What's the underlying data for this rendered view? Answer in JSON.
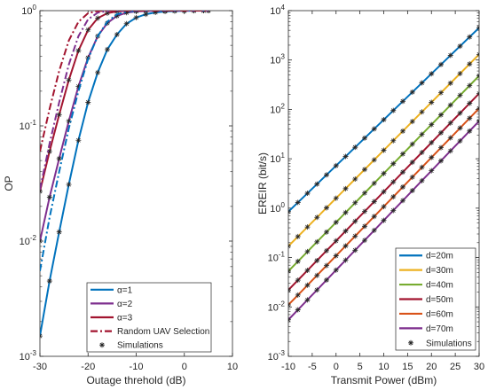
{
  "chart_data": [
    {
      "type": "line",
      "xlabel": "Outage threhold (dB)",
      "ylabel": "OP",
      "xscale": "linear",
      "yscale": "log",
      "xlim": [
        -30,
        10
      ],
      "ylim": [
        0.001,
        1
      ],
      "xticks": [
        -30,
        -20,
        -10,
        0,
        10
      ],
      "xtick_labels": [
        "-30",
        "-20",
        "-10",
        "0",
        "10"
      ],
      "yticks": [
        0.001,
        0.01,
        0.1,
        1
      ],
      "ytick_labels": [
        "10^-3",
        "10^-2",
        "10^-1",
        "10^0"
      ],
      "legend": "bottom-right",
      "series": [
        {
          "name": "α=1",
          "color": "#0072BD",
          "dash": "solid",
          "marker": "*",
          "x": [
            -30,
            -28,
            -26,
            -24,
            -22,
            -20,
            -18,
            -16,
            -14,
            -12,
            -10,
            -8,
            -6,
            -4,
            -2,
            0,
            2,
            4,
            5
          ],
          "y": [
            0.0015,
            0.0045,
            0.012,
            0.031,
            0.075,
            0.16,
            0.29,
            0.46,
            0.62,
            0.77,
            0.87,
            0.93,
            0.965,
            0.983,
            0.992,
            0.996,
            0.998,
            0.999,
            1.0
          ]
        },
        {
          "name": "α=2",
          "color": "#7E2F8E",
          "dash": "solid",
          "marker": "*",
          "x": [
            -30,
            -28,
            -26,
            -24,
            -22,
            -20,
            -18,
            -16,
            -14,
            -12,
            -10,
            -8,
            -6,
            -4,
            -2,
            0,
            2,
            4,
            5
          ],
          "y": [
            0.01,
            0.024,
            0.052,
            0.11,
            0.22,
            0.39,
            0.6,
            0.78,
            0.9,
            0.96,
            0.985,
            0.994,
            0.998,
            0.999,
            1.0,
            1.0,
            1.0,
            1.0,
            1.0
          ]
        },
        {
          "name": "α=3",
          "color": "#A2142F",
          "dash": "solid",
          "marker": "*",
          "x": [
            -30,
            -28,
            -26,
            -24,
            -22,
            -20,
            -18,
            -16,
            -14,
            -12,
            -10,
            -8,
            -6,
            -4,
            -2,
            0,
            2,
            4,
            5
          ],
          "y": [
            0.027,
            0.06,
            0.125,
            0.25,
            0.45,
            0.68,
            0.86,
            0.95,
            0.985,
            0.996,
            0.999,
            1.0,
            1.0,
            1.0,
            1.0,
            1.0,
            1.0,
            1.0,
            1.0
          ]
        },
        {
          "name": "",
          "color": "#0072BD",
          "dash": "dashdot",
          "marker": "",
          "x": [
            -30,
            -28,
            -26,
            -24,
            -22,
            -20,
            -18,
            -16,
            -14,
            -12,
            -10,
            -8,
            -6,
            -4,
            -2,
            0,
            2,
            4,
            5
          ],
          "y": [
            0.0055,
            0.016,
            0.04,
            0.095,
            0.2,
            0.38,
            0.6,
            0.8,
            0.93,
            0.98,
            0.995,
            0.999,
            1.0,
            1.0,
            1.0,
            1.0,
            1.0,
            1.0,
            1.0
          ]
        },
        {
          "name": "",
          "color": "#7E2F8E",
          "dash": "dashdot",
          "marker": "",
          "x": [
            -30,
            -28,
            -26,
            -24,
            -22,
            -20,
            -18,
            -16,
            -14,
            -12,
            -10,
            -8,
            -6,
            -4,
            -2,
            0,
            2,
            4,
            5
          ],
          "y": [
            0.028,
            0.07,
            0.16,
            0.34,
            0.6,
            0.84,
            0.96,
            0.993,
            0.999,
            1.0,
            1.0,
            1.0,
            1.0,
            1.0,
            1.0,
            1.0,
            1.0,
            1.0,
            1.0
          ]
        },
        {
          "name": "Random UAV Selection",
          "color": "#A2142F",
          "dash": "dashdot",
          "marker": "",
          "x": [
            -30,
            -28,
            -26,
            -24,
            -22,
            -20,
            -18,
            -16,
            -14,
            -12,
            -10,
            -8,
            -6,
            -4,
            -2,
            0,
            2,
            4,
            5
          ],
          "y": [
            0.06,
            0.14,
            0.3,
            0.55,
            0.8,
            0.95,
            0.993,
            0.999,
            1.0,
            1.0,
            1.0,
            1.0,
            1.0,
            1.0,
            1.0,
            1.0,
            1.0,
            1.0,
            1.0
          ]
        },
        {
          "name": "Simulations",
          "color": "#262626",
          "dash": "none",
          "marker": "*",
          "legend_only": true,
          "x": [],
          "y": []
        }
      ]
    },
    {
      "type": "line",
      "xlabel": "Transmit Power (dBm)",
      "ylabel": "EREIR (bit/s)",
      "xscale": "linear",
      "yscale": "log",
      "xlim": [
        -10,
        30
      ],
      "ylim": [
        0.001,
        10000
      ],
      "xticks": [
        -10,
        -5,
        0,
        5,
        10,
        15,
        20,
        25,
        30
      ],
      "xtick_labels": [
        "-10",
        "-5",
        "0",
        "5",
        "10",
        "15",
        "20",
        "25",
        "30"
      ],
      "yticks": [
        0.001,
        0.01,
        0.1,
        1,
        10,
        100,
        1000,
        10000
      ],
      "ytick_labels": [
        "10^-3",
        "10^-2",
        "10^-1",
        "10^0",
        "10^1",
        "10^2",
        "10^3",
        "10^4"
      ],
      "legend": "bottom-right",
      "series": [
        {
          "name": "d=20m",
          "color": "#0072BD",
          "marker": "*",
          "x": [
            -10,
            30
          ],
          "y": [
            0.85,
            4500
          ]
        },
        {
          "name": "d=30m",
          "color": "#EDB120",
          "marker": "*",
          "x": [
            -10,
            30
          ],
          "y": [
            0.17,
            1300
          ]
        },
        {
          "name": "d=40m",
          "color": "#77AC30",
          "marker": "*",
          "x": [
            -10,
            30
          ],
          "y": [
            0.053,
            480
          ]
        },
        {
          "name": "d=50m",
          "color": "#A2142F",
          "marker": "*",
          "x": [
            -10,
            30
          ],
          "y": [
            0.022,
            210
          ]
        },
        {
          "name": "d=60m",
          "color": "#D95319",
          "marker": "*",
          "x": [
            -10,
            30
          ],
          "y": [
            0.011,
            105
          ]
        },
        {
          "name": "d=70m",
          "color": "#7E2F8E",
          "marker": "*",
          "x": [
            -10,
            30
          ],
          "y": [
            0.0055,
            58
          ]
        },
        {
          "name": "Simulations",
          "color": "#262626",
          "marker": "*",
          "legend_only": true,
          "x": [],
          "y": []
        }
      ]
    }
  ]
}
